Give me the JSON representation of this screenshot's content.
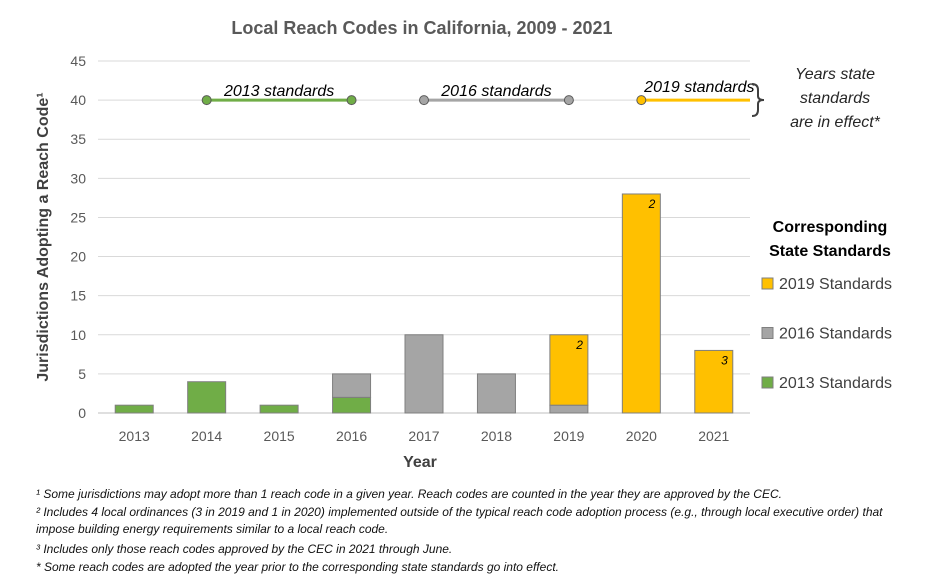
{
  "chart_data": {
    "type": "bar",
    "stacked": true,
    "title": "Local Reach Codes in California, 2009 - 2021",
    "xlabel": "Year",
    "ylabel": "Jurisdictions Adopting a Reach Code¹",
    "ylim": [
      0,
      45
    ],
    "yticks": [
      0,
      5,
      10,
      15,
      20,
      25,
      30,
      35,
      40,
      45
    ],
    "grid": true,
    "categories": [
      "2013",
      "2014",
      "2015",
      "2016",
      "2017",
      "2018",
      "2019",
      "2020",
      "2021"
    ],
    "series": [
      {
        "name": "2013 Standards",
        "color": "#70AD47",
        "values": [
          1,
          4,
          1,
          2,
          0,
          0,
          0,
          0,
          0
        ]
      },
      {
        "name": "2016 Standards",
        "color": "#A5A5A5",
        "values": [
          0,
          0,
          0,
          3,
          10,
          5,
          1,
          0,
          0
        ]
      },
      {
        "name": "2019 Standards",
        "color": "#FFC000",
        "values": [
          0,
          0,
          0,
          0,
          0,
          0,
          9,
          28,
          8
        ]
      }
    ],
    "bar_notes": [
      {
        "category": "2019",
        "text": "2"
      },
      {
        "category": "2020",
        "text": "2"
      },
      {
        "category": "2021",
        "text": "3"
      }
    ],
    "periods": [
      {
        "label": "2013 standards",
        "color": "#70AD47",
        "from": "2014",
        "to": "2016",
        "y": 40
      },
      {
        "label": "2016 standards",
        "color": "#A5A5A5",
        "from": "2017",
        "to": "2019",
        "y": 40
      },
      {
        "label": "2019 standards",
        "color": "#FFC000",
        "from": "2020",
        "to": "open",
        "y": 40
      }
    ],
    "period_note": [
      "Years state",
      "standards",
      "are in effect*"
    ],
    "legend": {
      "title": [
        "Corresponding",
        "State Standards"
      ],
      "position": "right",
      "entries": [
        "2019 Standards",
        "2016 Standards",
        "2013 Standards"
      ]
    }
  },
  "footnotes": [
    "¹ Some jurisdictions may adopt more than 1 reach code in a given year. Reach codes are counted in the year they are approved by the CEC.",
    "² Includes 4 local ordinances (3 in 2019 and 1 in 2020) implemented outside of the typical reach code adoption process (e.g., through local executive order) that impose building energy requirements similar to a local reach code.",
    "³ Includes only those reach codes approved by the CEC in 2021 through June.",
    "* Some reach codes are adopted the year prior to the corresponding state standards go into effect."
  ]
}
